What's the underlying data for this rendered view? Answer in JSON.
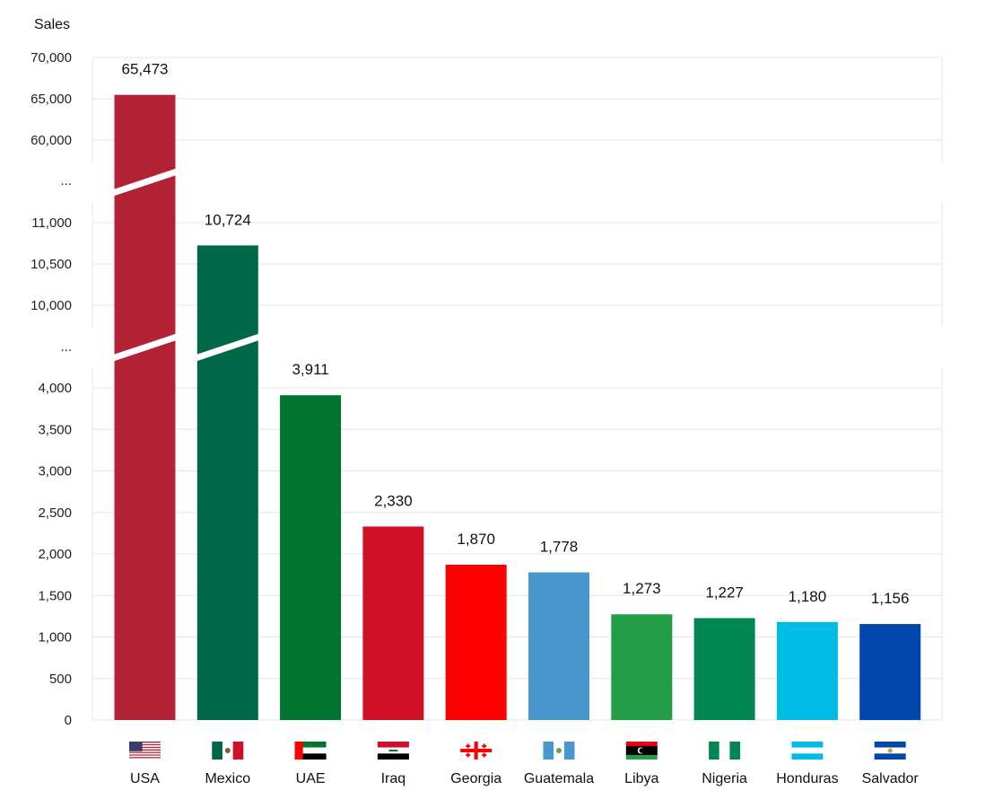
{
  "chart_data": {
    "type": "bar",
    "title": "",
    "ylabel": "Sales",
    "xlabel": "",
    "broken_axis": true,
    "axis_break_label": "...",
    "segments": [
      {
        "range": [
          60000,
          70000
        ],
        "ticks": [
          60000,
          65000,
          70000
        ],
        "tick_labels": [
          "60,000",
          "65,000",
          "70,000"
        ]
      },
      {
        "range": [
          10000,
          11000
        ],
        "ticks": [
          10000,
          10500,
          11000
        ],
        "tick_labels": [
          "10,000",
          "10,500",
          "11,000"
        ]
      },
      {
        "range": [
          0,
          4000
        ],
        "ticks": [
          0,
          500,
          1000,
          1500,
          2000,
          2500,
          3000,
          3500,
          4000
        ],
        "tick_labels": [
          "0",
          "500",
          "1,000",
          "1,500",
          "2,000",
          "2,500",
          "3,000",
          "3,500",
          "4,000"
        ]
      }
    ],
    "grid": true,
    "categories": [
      "USA",
      "Mexico",
      "UAE",
      "Iraq",
      "Georgia",
      "Guatemala",
      "Libya",
      "Nigeria",
      "Honduras",
      "Salvador"
    ],
    "values": [
      65473,
      10724,
      3911,
      2330,
      1870,
      1778,
      1273,
      1227,
      1180,
      1156
    ],
    "value_labels": [
      "65,473",
      "10,724",
      "3,911",
      "2,330",
      "1,870",
      "1,778",
      "1,273",
      "1,227",
      "1,180",
      "1,156"
    ],
    "colors": [
      "#b22234",
      "#006847",
      "#00732f",
      "#ce1126",
      "#ff0000",
      "#4997d0",
      "#239e46",
      "#008751",
      "#00bce4",
      "#0047ab"
    ],
    "flag_icons": [
      "usa-flag-icon",
      "mexico-flag-icon",
      "uae-flag-icon",
      "iraq-flag-icon",
      "georgia-flag-icon",
      "guatemala-flag-icon",
      "libya-flag-icon",
      "nigeria-flag-icon",
      "honduras-flag-icon",
      "salvador-flag-icon"
    ]
  }
}
